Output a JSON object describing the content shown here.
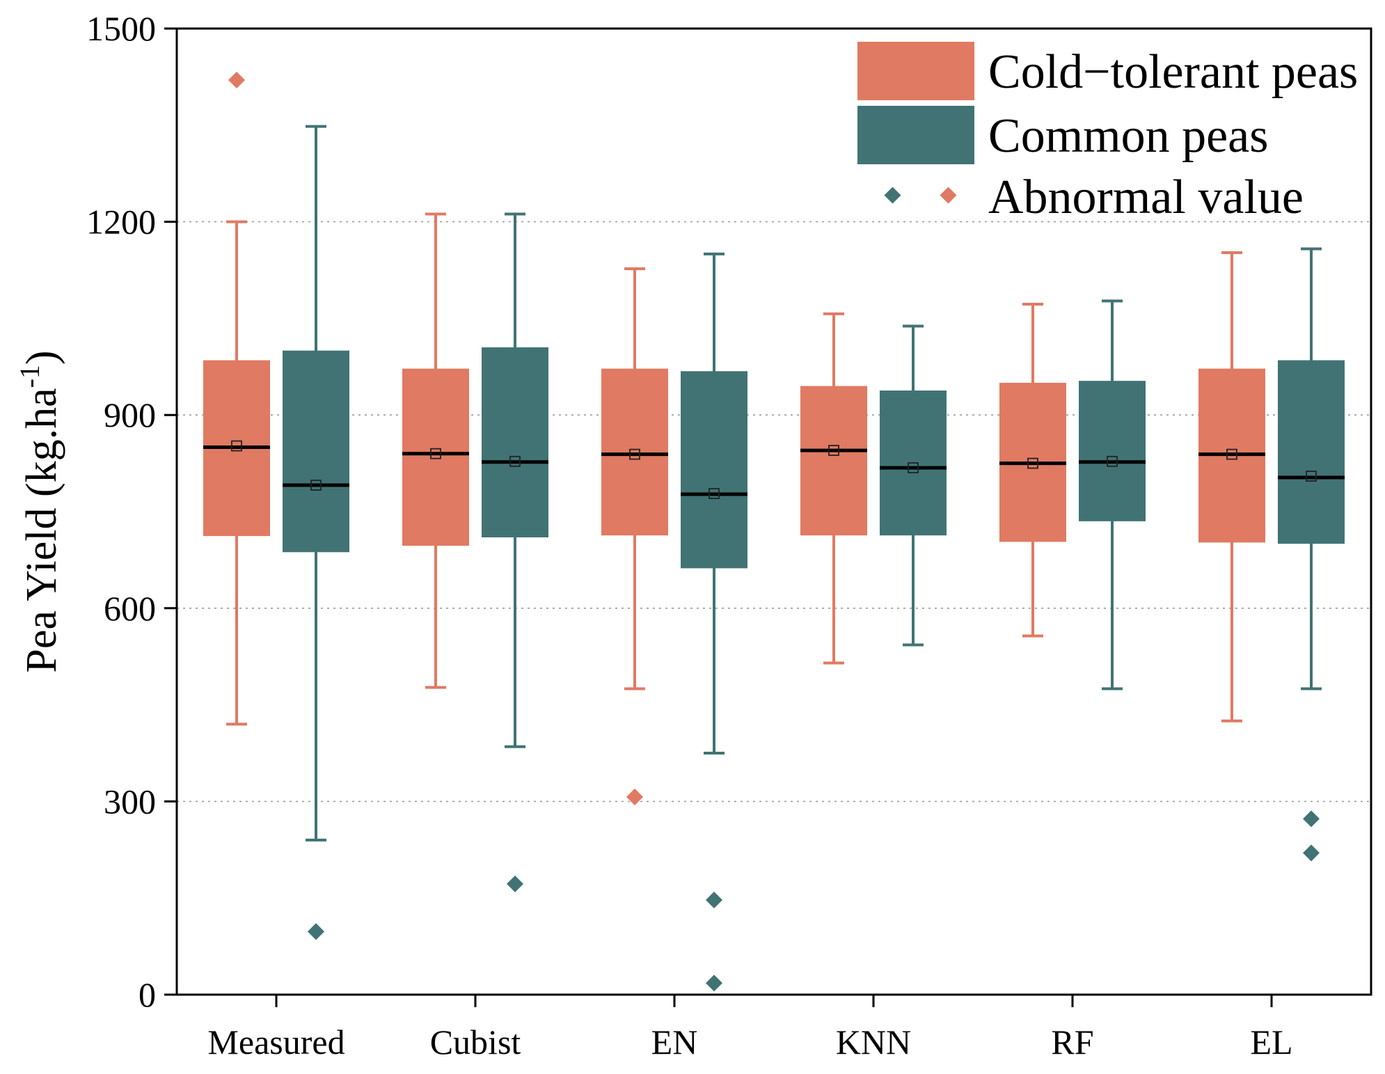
{
  "chart_data": {
    "type": "box",
    "categories": [
      "Measured",
      "Cubist",
      "EN",
      "KNN",
      "RF",
      "EL"
    ],
    "ylabel": "Pea Yield (kg.ha",
    "ylabel_superscript": "-1",
    "ylabel_close": ")",
    "xlabel": "",
    "ylim": [
      0,
      1500
    ],
    "yticks": [
      0,
      300,
      600,
      900,
      1200,
      1500
    ],
    "grid_lines": [
      300,
      600,
      900,
      1200
    ],
    "legend_position": "top-right",
    "legend": {
      "cold_label": "Cold−tolerant peas",
      "common_label": "Common peas",
      "abnormal_label": "Abnormal value"
    },
    "series": [
      {
        "name": "Cold−tolerant peas",
        "color": "#E07A62",
        "boxes": [
          {
            "category": "Measured",
            "whisker_low": 420,
            "q1": 712,
            "median": 850,
            "q3": 985,
            "whisker_high": 1200,
            "mean": 852,
            "outliers": [
              1420
            ]
          },
          {
            "category": "Cubist",
            "whisker_low": 477,
            "q1": 697,
            "median": 840,
            "q3": 972,
            "whisker_high": 1212,
            "mean": 840,
            "outliers": []
          },
          {
            "category": "EN",
            "whisker_low": 475,
            "q1": 713,
            "median": 839,
            "q3": 972,
            "whisker_high": 1127,
            "mean": 839,
            "outliers": [
              307
            ]
          },
          {
            "category": "KNN",
            "whisker_low": 515,
            "q1": 713,
            "median": 845,
            "q3": 945,
            "whisker_high": 1057,
            "mean": 845,
            "outliers": []
          },
          {
            "category": "RF",
            "whisker_low": 557,
            "q1": 703,
            "median": 825,
            "q3": 950,
            "whisker_high": 1072,
            "mean": 825,
            "outliers": []
          },
          {
            "category": "EL",
            "whisker_low": 425,
            "q1": 702,
            "median": 839,
            "q3": 972,
            "whisker_high": 1152,
            "mean": 839,
            "outliers": []
          }
        ]
      },
      {
        "name": "Common peas",
        "color": "#417374",
        "boxes": [
          {
            "category": "Measured",
            "whisker_low": 240,
            "q1": 687,
            "median": 791,
            "q3": 1000,
            "whisker_high": 1348,
            "mean": 791,
            "outliers": [
              98
            ]
          },
          {
            "category": "Cubist",
            "whisker_low": 385,
            "q1": 710,
            "median": 827,
            "q3": 1005,
            "whisker_high": 1212,
            "mean": 828,
            "outliers": [
              172
            ]
          },
          {
            "category": "EN",
            "whisker_low": 375,
            "q1": 662,
            "median": 777,
            "q3": 968,
            "whisker_high": 1150,
            "mean": 778,
            "outliers": [
              147,
              18
            ]
          },
          {
            "category": "KNN",
            "whisker_low": 543,
            "q1": 713,
            "median": 818,
            "q3": 938,
            "whisker_high": 1038,
            "mean": 818,
            "outliers": []
          },
          {
            "category": "RF",
            "whisker_low": 475,
            "q1": 735,
            "median": 827,
            "q3": 953,
            "whisker_high": 1077,
            "mean": 828,
            "outliers": []
          },
          {
            "category": "EL",
            "whisker_low": 475,
            "q1": 700,
            "median": 803,
            "q3": 985,
            "whisker_high": 1158,
            "mean": 805,
            "outliers": [
              273,
              220
            ]
          }
        ]
      }
    ]
  }
}
